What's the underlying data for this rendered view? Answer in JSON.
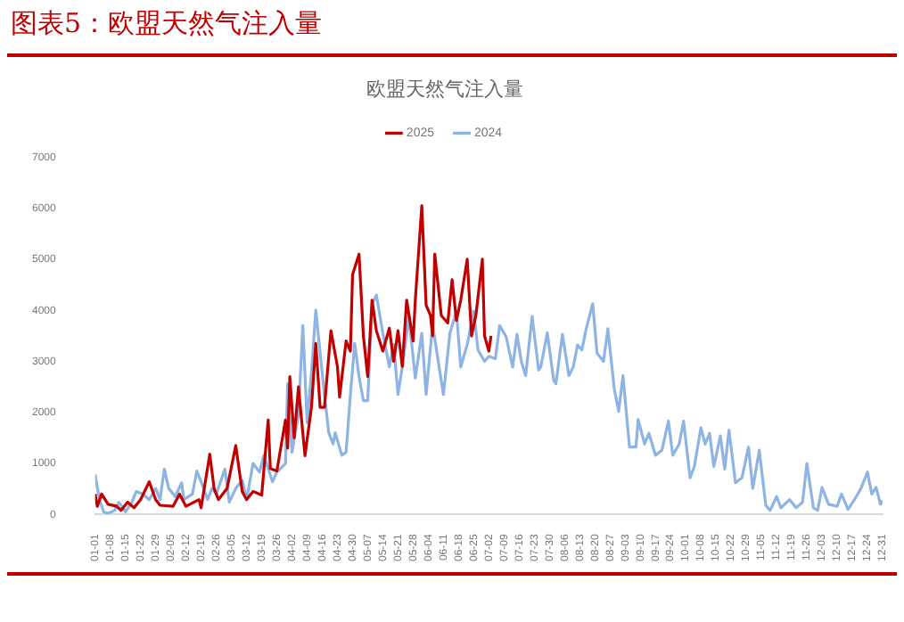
{
  "chart_data": {
    "type": "line",
    "title": "图表5：欧盟天然气注入量",
    "subtitle": "欧盟天然气注入量",
    "ylim": [
      0,
      7000
    ],
    "yticks": [
      0,
      1000,
      2000,
      3000,
      4000,
      5000,
      6000,
      7000
    ],
    "xlim": [
      "--01-01",
      "--12-31"
    ],
    "xticks": [
      {
        "value": "--01-01",
        "label": "01-01"
      },
      {
        "value": "--01-08",
        "label": "01-08"
      },
      {
        "value": "--01-15",
        "label": "01-15"
      },
      {
        "value": "--01-22",
        "label": "01-22"
      },
      {
        "value": "--01-29",
        "label": "01-29"
      },
      {
        "value": "--02-05",
        "label": "02-05"
      },
      {
        "value": "--02-12",
        "label": "02-12"
      },
      {
        "value": "--02-19",
        "label": "02-19"
      },
      {
        "value": "--02-26",
        "label": "02-26"
      },
      {
        "value": "--03-05",
        "label": "03-05"
      },
      {
        "value": "--03-12",
        "label": "03-12"
      },
      {
        "value": "--03-19",
        "label": "03-19"
      },
      {
        "value": "--03-26",
        "label": "03-26"
      },
      {
        "value": "--04-02",
        "label": "04-02"
      },
      {
        "value": "--04-09",
        "label": "04-09"
      },
      {
        "value": "--04-16",
        "label": "04-16"
      },
      {
        "value": "--04-23",
        "label": "04-23"
      },
      {
        "value": "--04-30",
        "label": "04-30"
      },
      {
        "value": "--05-07",
        "label": "05-07"
      },
      {
        "value": "--05-14",
        "label": "05-14"
      },
      {
        "value": "--05-21",
        "label": "05-21"
      },
      {
        "value": "--05-28",
        "label": "05-28"
      },
      {
        "value": "--06-04",
        "label": "06-04"
      },
      {
        "value": "--06-11",
        "label": "06-11"
      },
      {
        "value": "--06-18",
        "label": "06-18"
      },
      {
        "value": "--06-25",
        "label": "06-25"
      },
      {
        "value": "--07-02",
        "label": "07-02"
      },
      {
        "value": "--07-09",
        "label": "07-09"
      },
      {
        "value": "--07-16",
        "label": "07-16"
      },
      {
        "value": "--07-23",
        "label": "07-23"
      },
      {
        "value": "--07-30",
        "label": "07-30"
      },
      {
        "value": "--08-06",
        "label": "08-06"
      },
      {
        "value": "--08-13",
        "label": "08-13"
      },
      {
        "value": "--08-20",
        "label": "08-20"
      },
      {
        "value": "--08-27",
        "label": "08-27"
      },
      {
        "value": "--09-03",
        "label": "09-03"
      },
      {
        "value": "--09-10",
        "label": "09-10"
      },
      {
        "value": "--09-17",
        "label": "09-17"
      },
      {
        "value": "--09-24",
        "label": "09-24"
      },
      {
        "value": "--10-01",
        "label": "10-01"
      },
      {
        "value": "--10-08",
        "label": "10-08"
      },
      {
        "value": "--10-15",
        "label": "10-15"
      },
      {
        "value": "--10-22",
        "label": "10-22"
      },
      {
        "value": "--10-29",
        "label": "10-29"
      },
      {
        "value": "--11-05",
        "label": "11-05"
      },
      {
        "value": "--11-12",
        "label": "11-12"
      },
      {
        "value": "--11-19",
        "label": "11-19"
      },
      {
        "value": "--11-26",
        "label": "11-26"
      },
      {
        "value": "--12-03",
        "label": "12-03"
      },
      {
        "value": "--12-10",
        "label": "12-10"
      },
      {
        "value": "--12-17",
        "label": "12-17"
      },
      {
        "value": "--12-24",
        "label": "12-24"
      },
      {
        "value": "--12-31",
        "label": "12-31"
      }
    ],
    "grid": false,
    "legend": "top",
    "marker": "none",
    "line_style": "solid",
    "series": [
      {
        "name": "2025",
        "color": "#c00000",
        "x": [
          "--01-01",
          "--01-02",
          "--01-04",
          "--01-07",
          "--01-11",
          "--01-13",
          "--01-16",
          "--01-19",
          "--01-22",
          "--01-26",
          "--01-29",
          "--01-31",
          "--02-06",
          "--02-09",
          "--02-12",
          "--02-18",
          "--02-19",
          "--02-23",
          "--02-25",
          "--02-27",
          "--03-03",
          "--03-07",
          "--03-10",
          "--03-12",
          "--03-15",
          "--03-19",
          "--03-22",
          "--03-23",
          "--03-26",
          "--03-30",
          "--03-31",
          "--04-01",
          "--04-03",
          "--04-05",
          "--04-08",
          "--04-11",
          "--04-13",
          "--04-15",
          "--04-17",
          "--04-20",
          "--04-23",
          "--04-24",
          "--04-27",
          "--04-29",
          "--04-30",
          "--05-03",
          "--05-05",
          "--05-07",
          "--05-09",
          "--05-11",
          "--05-14",
          "--05-17",
          "--05-19",
          "--05-21",
          "--05-23",
          "--05-25",
          "--05-28",
          "--05-29",
          "--06-01",
          "--06-03",
          "--06-05",
          "--06-06",
          "--06-07",
          "--06-10",
          "--06-13",
          "--06-15",
          "--06-17",
          "--06-19",
          "--06-22",
          "--06-24",
          "--06-26",
          "--06-29",
          "--06-30",
          "--07-02",
          "--07-03"
        ],
        "values": [
          400,
          160,
          400,
          200,
          160,
          80,
          240,
          130,
          290,
          640,
          290,
          180,
          160,
          400,
          160,
          290,
          130,
          1180,
          510,
          290,
          510,
          1350,
          450,
          290,
          450,
          380,
          1850,
          900,
          850,
          1850,
          1300,
          2700,
          1500,
          2500,
          1150,
          2100,
          3350,
          2100,
          2100,
          3600,
          2900,
          2300,
          3400,
          3200,
          4700,
          5100,
          3500,
          2700,
          4200,
          3600,
          3200,
          3650,
          3000,
          3600,
          2900,
          4200,
          3400,
          4200,
          6050,
          4100,
          3900,
          3500,
          5100,
          3900,
          3750,
          4600,
          3800,
          4200,
          5000,
          3500,
          3900,
          5000,
          3500,
          3200,
          3500
        ]
      },
      {
        "name": "2024",
        "color": "#8db4e2",
        "x": [
          "--01-01",
          "--01-03",
          "--01-05",
          "--01-07",
          "--01-10",
          "--01-12",
          "--01-15",
          "--01-18",
          "--01-20",
          "--01-23",
          "--01-26",
          "--01-29",
          "--01-31",
          "--02-02",
          "--02-04",
          "--02-07",
          "--02-10",
          "--02-11",
          "--02-15",
          "--02-17",
          "--02-19",
          "--02-22",
          "--02-24",
          "--02-26",
          "--03-02",
          "--03-04",
          "--03-07",
          "--03-10",
          "--03-12",
          "--03-15",
          "--03-18",
          "--03-20",
          "--03-24",
          "--03-26",
          "--03-30",
          "--03-31",
          "--04-02",
          "--04-05",
          "--04-07",
          "--04-09",
          "--04-11",
          "--04-13",
          "--04-17",
          "--04-19",
          "--04-21",
          "--04-22",
          "--04-25",
          "--04-27",
          "--04-29",
          "--05-01",
          "--05-03",
          "--05-05",
          "--05-07",
          "--05-09",
          "--05-11",
          "--05-14",
          "--05-17",
          "--05-19",
          "--05-21",
          "--05-23",
          "--05-26",
          "--05-29",
          "--06-01",
          "--06-03",
          "--06-06",
          "--06-09",
          "--06-11",
          "--06-14",
          "--06-17",
          "--06-19",
          "--06-22",
          "--06-25",
          "--06-27",
          "--06-30",
          "--07-02",
          "--07-05",
          "--07-07",
          "--07-10",
          "--07-13",
          "--07-15",
          "--07-17",
          "--07-19",
          "--07-22",
          "--07-25",
          "--07-26",
          "--07-29",
          "--08-01",
          "--08-02",
          "--08-05",
          "--08-08",
          "--08-10",
          "--08-12",
          "--08-14",
          "--08-16",
          "--08-19",
          "--08-21",
          "--08-24",
          "--08-26",
          "--08-29",
          "--08-31",
          "--09-02",
          "--09-05",
          "--09-08",
          "--09-09",
          "--09-12",
          "--09-14",
          "--09-17",
          "--09-20",
          "--09-23",
          "--09-25",
          "--09-28",
          "--09-30",
          "--10-03",
          "--10-05",
          "--10-08",
          "--10-10",
          "--10-12",
          "--10-14",
          "--10-17",
          "--10-19",
          "--10-21",
          "--10-24",
          "--10-27",
          "--10-30",
          "--11-01",
          "--11-04",
          "--11-07",
          "--11-09",
          "--11-12",
          "--11-14",
          "--11-18",
          "--11-21",
          "--11-24",
          "--11-26",
          "--11-29",
          "--12-01",
          "--12-03",
          "--12-06",
          "--12-10",
          "--12-12",
          "--12-15",
          "--12-18",
          "--12-21",
          "--12-24",
          "--12-26",
          "--12-28",
          "--12-30",
          "--12-31"
        ],
        "values": [
          780,
          290,
          50,
          20,
          80,
          240,
          50,
          240,
          450,
          400,
          290,
          510,
          290,
          890,
          510,
          350,
          620,
          290,
          400,
          850,
          640,
          290,
          510,
          400,
          890,
          240,
          510,
          670,
          290,
          1000,
          830,
          1160,
          640,
          830,
          1000,
          2560,
          1220,
          1970,
          3700,
          1800,
          2780,
          4000,
          2350,
          1600,
          1380,
          1600,
          1160,
          1220,
          2350,
          3350,
          2700,
          2230,
          2230,
          4100,
          4300,
          3550,
          2890,
          3330,
          2350,
          2890,
          3880,
          2670,
          3550,
          2350,
          3720,
          2890,
          2350,
          3550,
          3980,
          2890,
          3330,
          3980,
          3220,
          3000,
          3100,
          3050,
          3700,
          3480,
          2890,
          3530,
          3000,
          2720,
          3880,
          2830,
          2890,
          3560,
          2620,
          2560,
          3530,
          2720,
          2890,
          3320,
          3220,
          3640,
          4130,
          3160,
          3000,
          3640,
          2450,
          2020,
          2720,
          1320,
          1320,
          1860,
          1380,
          1590,
          1160,
          1260,
          1830,
          1160,
          1380,
          1830,
          720,
          940,
          1700,
          1380,
          1590,
          940,
          1540,
          890,
          1650,
          620,
          720,
          1320,
          510,
          1260,
          180,
          80,
          350,
          130,
          290,
          130,
          240,
          1000,
          130,
          80,
          530,
          200,
          160,
          400,
          100,
          290,
          510,
          830,
          400,
          530,
          200,
          270
        ]
      }
    ]
  }
}
